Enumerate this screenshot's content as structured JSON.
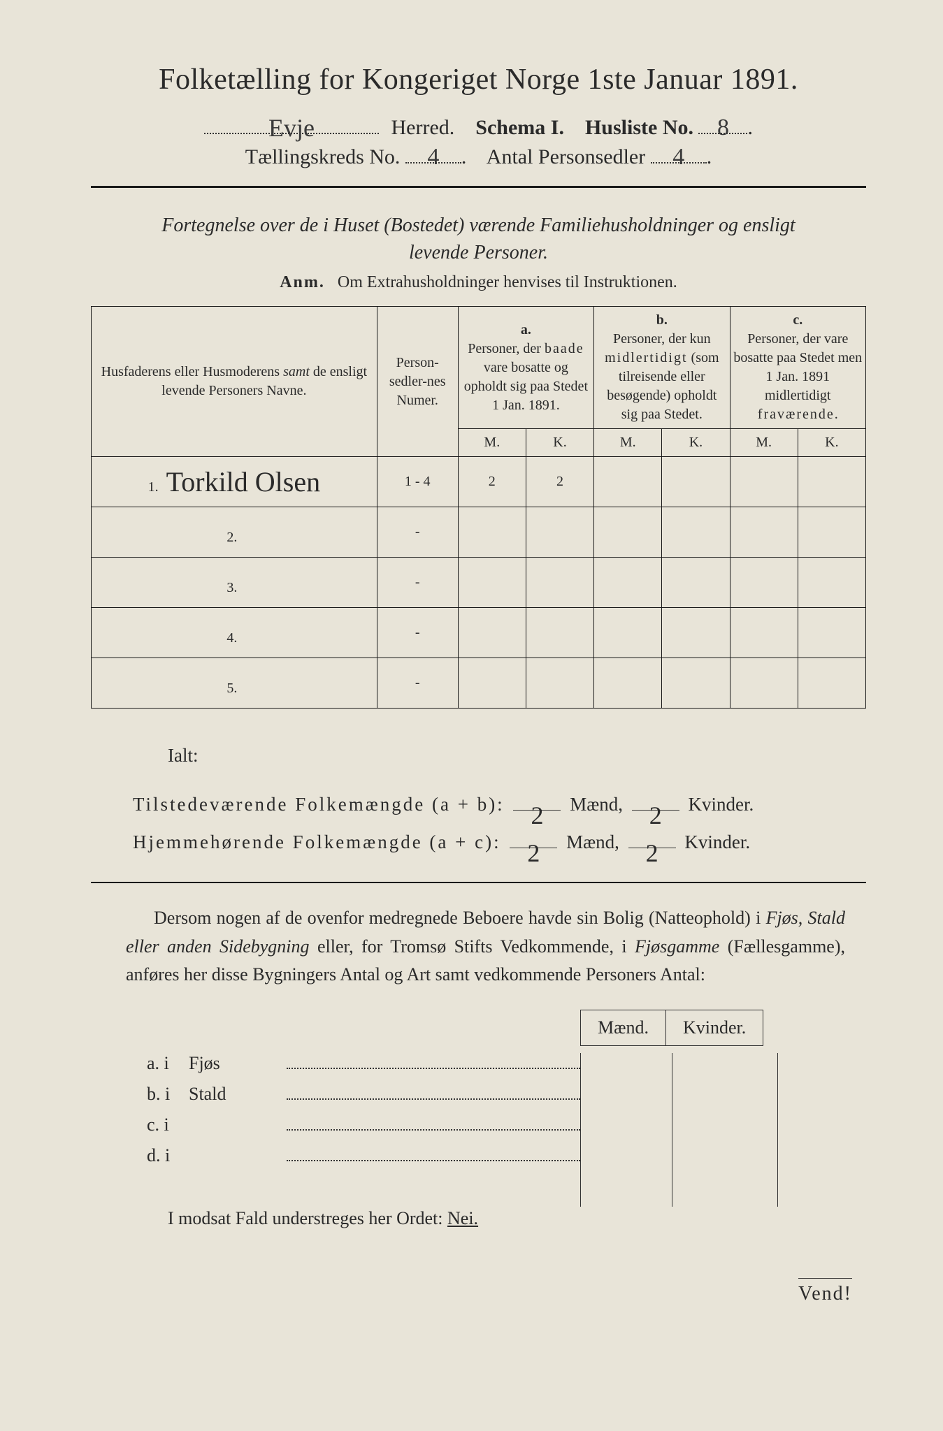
{
  "title": "Folketælling for Kongeriget Norge 1ste Januar 1891.",
  "header": {
    "herred_value": "Evje",
    "herred_label": "Herred.",
    "schema_label": "Schema I.",
    "husliste_label": "Husliste No.",
    "husliste_value": "8",
    "kreds_label": "Tællingskreds No.",
    "kreds_value": "4",
    "antal_label": "Antal Personsedler",
    "antal_value": "4"
  },
  "subtitle": "Fortegnelse over de i Huset (Bostedet) værende Familiehusholdninger og ensligt levende Personer.",
  "anm_label": "Anm.",
  "anm_text": "Om Extrahusholdninger henvises til Instruktionen.",
  "table": {
    "col1": "Husfaderens eller Husmoderens samt de ensligt levende Personers Navne.",
    "col1_samt": "samt",
    "col2": "Person-sedler-nes Numer.",
    "col_a_label": "a.",
    "col_a": "Personer, der baade vare bosatte og opholdt sig paa Stedet 1 Jan. 1891.",
    "col_b_label": "b.",
    "col_b": "Personer, der kun midlertidigt (som tilreisende eller besøgende) opholdt sig paa Stedet.",
    "col_c_label": "c.",
    "col_c": "Personer, der vare bosatte paa Stedet men 1 Jan. 1891 midlertidigt fraværende.",
    "M": "M.",
    "K": "K.",
    "rows": [
      {
        "n": "1.",
        "name": "Torkild Olsen",
        "num": "1 - 4",
        "aM": "2",
        "aK": "2",
        "bM": "",
        "bK": "",
        "cM": "",
        "cK": ""
      },
      {
        "n": "2.",
        "name": "",
        "num": "-",
        "aM": "",
        "aK": "",
        "bM": "",
        "bK": "",
        "cM": "",
        "cK": ""
      },
      {
        "n": "3.",
        "name": "",
        "num": "-",
        "aM": "",
        "aK": "",
        "bM": "",
        "bK": "",
        "cM": "",
        "cK": ""
      },
      {
        "n": "4.",
        "name": "",
        "num": "-",
        "aM": "",
        "aK": "",
        "bM": "",
        "bK": "",
        "cM": "",
        "cK": ""
      },
      {
        "n": "5.",
        "name": "",
        "num": "-",
        "aM": "",
        "aK": "",
        "bM": "",
        "bK": "",
        "cM": "",
        "cK": ""
      }
    ]
  },
  "totals": {
    "ialt": "Ialt:",
    "line1_label": "Tilstedeværende Folkemængde (a + b):",
    "line2_label": "Hjemmehørende Folkemængde (a + c):",
    "maend": "Mænd,",
    "kvinder": "Kvinder.",
    "l1_m": "2",
    "l1_k": "2",
    "l2_m": "2",
    "l2_k": "2"
  },
  "para": {
    "text1": "Dersom nogen af de ovenfor medregnede Beboere havde sin Bolig (Natteophold) i ",
    "it1": "Fjøs, Stald eller anden Sidebygning",
    "text2": " eller, for Tromsø Stifts Vedkommende, i ",
    "it2": "Fjøsgamme",
    "text3": " (Fællesgamme), anføres her disse Bygningers Antal og Art samt vedkommende Personers Antal:"
  },
  "sub": {
    "maend": "Mænd.",
    "kvinder": "Kvinder.",
    "rows": [
      {
        "lab": "a.  i",
        "typ": "Fjøs"
      },
      {
        "lab": "b.  i",
        "typ": "Stald"
      },
      {
        "lab": "c.  i",
        "typ": ""
      },
      {
        "lab": "d.  i",
        "typ": ""
      }
    ]
  },
  "footer": {
    "text1": "I modsat Fald understreges her Ordet: ",
    "nei": "Nei.",
    "vend": "Vend!"
  }
}
